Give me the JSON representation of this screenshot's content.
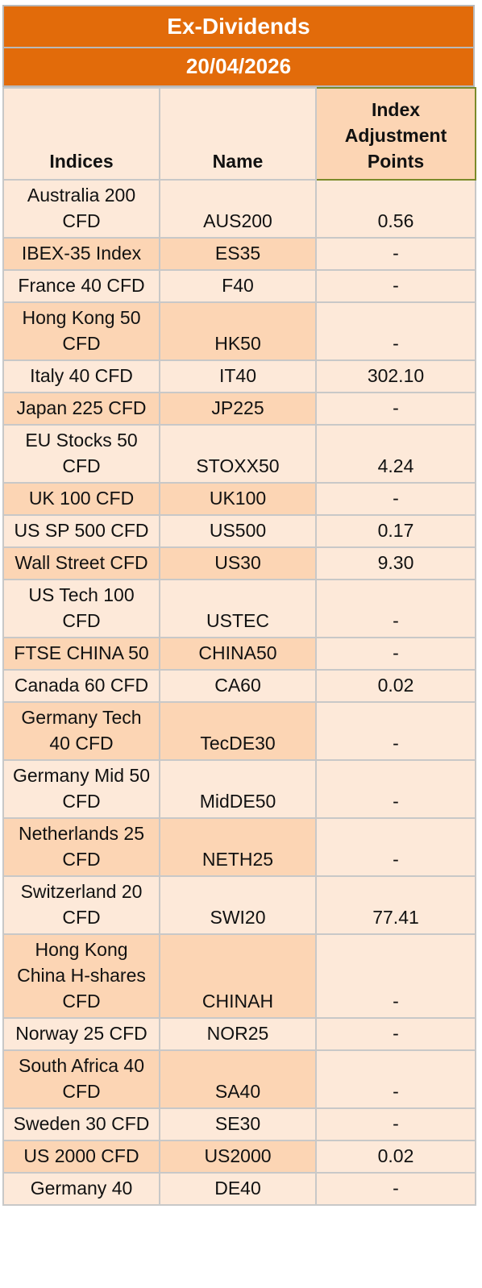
{
  "title": "Ex-Dividends",
  "date": "20/04/2026",
  "columns": {
    "indices": "Indices",
    "name": "Name",
    "points": "Index Adjustment Points"
  },
  "rows": [
    {
      "index": "Australia 200 CFD",
      "name": "AUS200",
      "points": "0.56"
    },
    {
      "index": "IBEX-35 Index",
      "name": "ES35",
      "points": "-"
    },
    {
      "index": "France 40 CFD",
      "name": "F40",
      "points": "-"
    },
    {
      "index": "Hong Kong 50 CFD",
      "name": "HK50",
      "points": "-"
    },
    {
      "index": "Italy 40 CFD",
      "name": "IT40",
      "points": "302.10"
    },
    {
      "index": "Japan 225 CFD",
      "name": "JP225",
      "points": "-"
    },
    {
      "index": "EU Stocks 50 CFD",
      "name": "STOXX50",
      "points": "4.24"
    },
    {
      "index": "UK 100 CFD",
      "name": "UK100",
      "points": "-"
    },
    {
      "index": "US SP 500 CFD",
      "name": "US500",
      "points": "0.17"
    },
    {
      "index": "Wall Street CFD",
      "name": "US30",
      "points": "9.30"
    },
    {
      "index": "US Tech 100 CFD",
      "name": "USTEC",
      "points": "-"
    },
    {
      "index": "FTSE CHINA 50",
      "name": "CHINA50",
      "points": "-"
    },
    {
      "index": "Canada 60 CFD",
      "name": "CA60",
      "points": "0.02"
    },
    {
      "index": "Germany Tech 40 CFD",
      "name": "TecDE30",
      "points": "-"
    },
    {
      "index": "Germany Mid 50 CFD",
      "name": "MidDE50",
      "points": "-"
    },
    {
      "index": "Netherlands 25 CFD",
      "name": "NETH25",
      "points": "-"
    },
    {
      "index": "Switzerland 20 CFD",
      "name": "SWI20",
      "points": "77.41"
    },
    {
      "index": "Hong Kong China H-shares CFD",
      "name": "CHINAH",
      "points": "-"
    },
    {
      "index": "Norway 25 CFD",
      "name": "NOR25",
      "points": "-"
    },
    {
      "index": "South Africa 40 CFD",
      "name": "SA40",
      "points": "-"
    },
    {
      "index": "Sweden 30 CFD",
      "name": "SE30",
      "points": "-"
    },
    {
      "index": "US 2000 CFD",
      "name": "US2000",
      "points": "0.02"
    },
    {
      "index": "Germany 40",
      "name": "DE40",
      "points": "-"
    }
  ]
}
